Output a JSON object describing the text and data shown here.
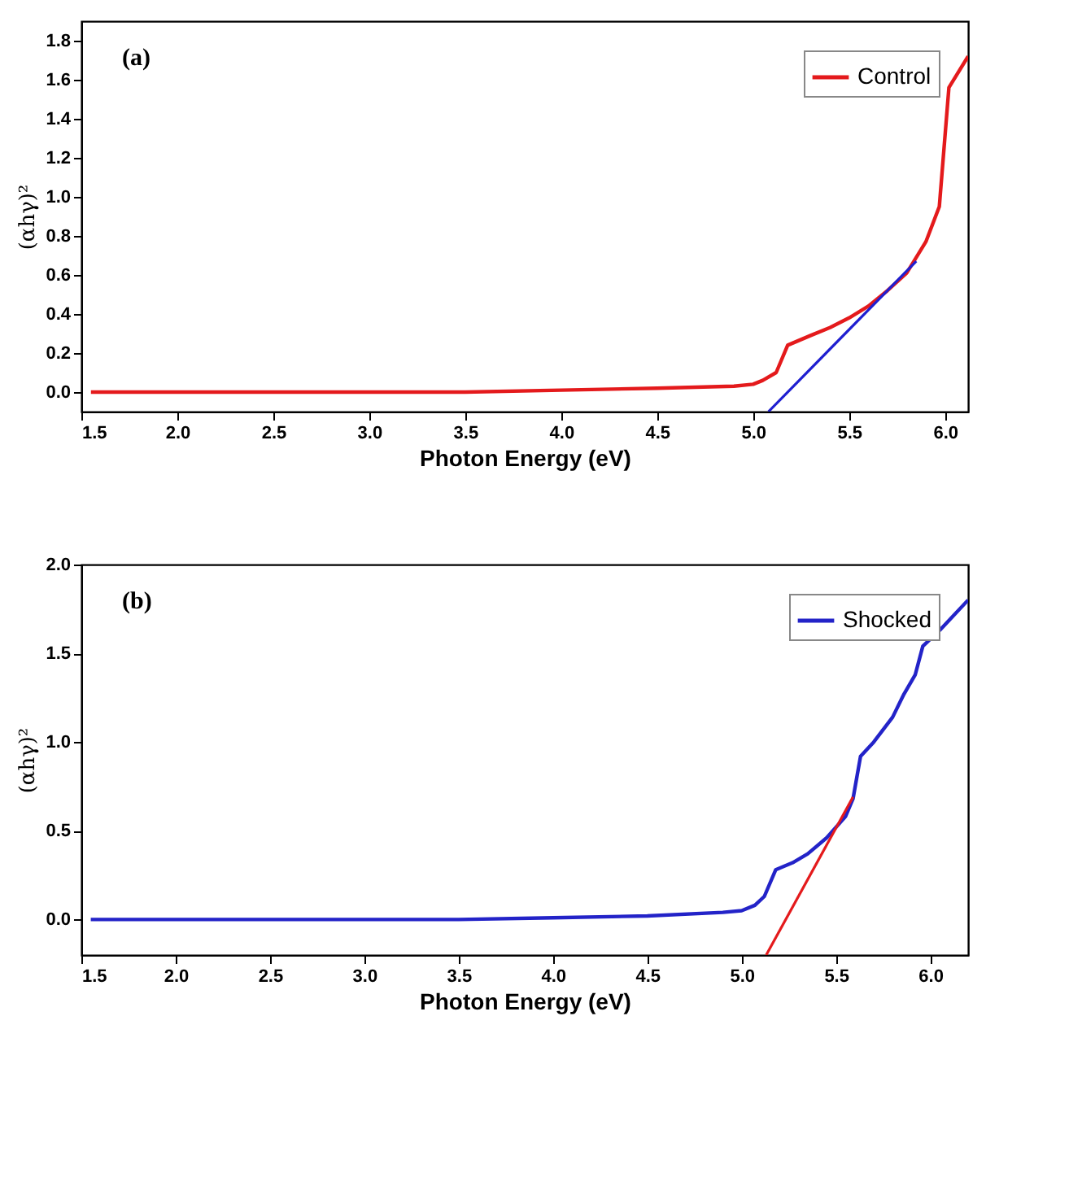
{
  "chart_data": [
    {
      "type": "line",
      "xlabel": "Photon Energy (eV)",
      "ylabel": "(αhγ)²",
      "annotations": [
        "(a)"
      ],
      "xlim": [
        1.5,
        6.12
      ],
      "xticks": [
        {
          "value": 1.5,
          "label": "1.5"
        },
        {
          "value": 2,
          "label": "2.0"
        },
        {
          "value": 2.5,
          "label": "2.5"
        },
        {
          "value": 3,
          "label": "3.0"
        },
        {
          "value": 3.5,
          "label": "3.5"
        },
        {
          "value": 4,
          "label": "4.0"
        },
        {
          "value": 4.5,
          "label": "4.5"
        },
        {
          "value": 5,
          "label": "5.0"
        },
        {
          "value": 5.5,
          "label": "5.5"
        },
        {
          "value": 6,
          "label": "6.0"
        }
      ],
      "ylim": [
        -0.1,
        1.9
      ],
      "yticks": [
        {
          "value": 0,
          "label": "0.0"
        },
        {
          "value": 0.2,
          "label": "0.2"
        },
        {
          "value": 0.4,
          "label": "0.4"
        },
        {
          "value": 0.6,
          "label": "0.6"
        },
        {
          "value": 0.8,
          "label": "0.8"
        },
        {
          "value": 1,
          "label": "1.0"
        },
        {
          "value": 1.2,
          "label": "1.2"
        },
        {
          "value": 1.4,
          "label": "1.4"
        },
        {
          "value": 1.6,
          "label": "1.6"
        },
        {
          "value": 1.8,
          "label": "1.8"
        }
      ],
      "grid": false,
      "legend": "top right",
      "series": [
        {
          "name": "Control",
          "color": "#e41a1c",
          "x": [
            1.55,
            2.5,
            3.5,
            4.0,
            4.5,
            4.9,
            5.0,
            5.05,
            5.12,
            5.18,
            5.3,
            5.4,
            5.5,
            5.6,
            5.7,
            5.8,
            5.9,
            5.97,
            6.02,
            6.12
          ],
          "values": [
            0.0,
            0.0,
            0.0,
            0.01,
            0.02,
            0.03,
            0.04,
            0.06,
            0.1,
            0.24,
            0.29,
            0.33,
            0.38,
            0.44,
            0.52,
            0.61,
            0.77,
            0.95,
            1.56,
            1.72
          ]
        },
        {
          "type": "line",
          "color": "#1f1fd0",
          "x": [
            5.08,
            5.85
          ],
          "values": [
            -0.1,
            0.67
          ]
        }
      ]
    },
    {
      "type": "line",
      "xlabel": "Photon Energy (eV)",
      "ylabel": "(αhγ)²",
      "annotations": [
        "(b)"
      ],
      "xlim": [
        1.5,
        6.2
      ],
      "xticks": [
        {
          "value": 1.5,
          "label": "1.5"
        },
        {
          "value": 2,
          "label": "2.0"
        },
        {
          "value": 2.5,
          "label": "2.5"
        },
        {
          "value": 3,
          "label": "3.0"
        },
        {
          "value": 3.5,
          "label": "3.5"
        },
        {
          "value": 4,
          "label": "4.0"
        },
        {
          "value": 4.5,
          "label": "4.5"
        },
        {
          "value": 5,
          "label": "5.0"
        },
        {
          "value": 5.5,
          "label": "5.5"
        },
        {
          "value": 6,
          "label": "6.0"
        }
      ],
      "ylim": [
        -0.2,
        2.0
      ],
      "yticks": [
        {
          "value": 0,
          "label": "0.0"
        },
        {
          "value": 0.5,
          "label": "0.5"
        },
        {
          "value": 1,
          "label": "1.0"
        },
        {
          "value": 1.5,
          "label": "1.5"
        },
        {
          "value": 2,
          "label": "2.0"
        }
      ],
      "grid": false,
      "legend": "top right",
      "series": [
        {
          "name": "Shocked",
          "color": "#2323c8",
          "x": [
            1.55,
            2.5,
            3.5,
            4.0,
            4.5,
            4.9,
            5.0,
            5.07,
            5.12,
            5.18,
            5.27,
            5.35,
            5.45,
            5.55,
            5.59,
            5.63,
            5.7,
            5.8,
            5.86,
            5.92,
            5.96,
            6.05,
            6.2
          ],
          "values": [
            0.0,
            0.0,
            0.0,
            0.01,
            0.02,
            0.04,
            0.05,
            0.08,
            0.13,
            0.28,
            0.32,
            0.37,
            0.46,
            0.58,
            0.68,
            0.92,
            1.0,
            1.14,
            1.27,
            1.38,
            1.54,
            1.63,
            1.8
          ]
        },
        {
          "type": "line",
          "color": "#e41a1c",
          "x": [
            5.13,
            5.59
          ],
          "values": [
            -0.2,
            0.69
          ]
        }
      ]
    }
  ]
}
